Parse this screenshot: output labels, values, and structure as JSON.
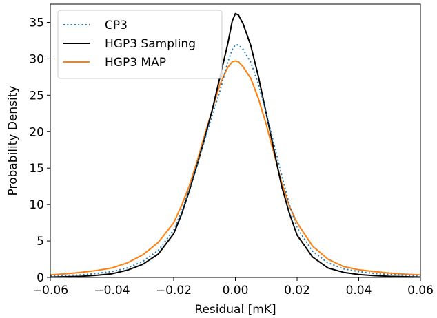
{
  "chart_data": {
    "type": "line",
    "xlabel": "Residual [mK]",
    "ylabel": "Probability Density",
    "xlim": [
      -0.06,
      0.06
    ],
    "ylim": [
      0,
      37.5
    ],
    "grid": false,
    "legend_position": "top-left",
    "x_ticks": [
      "−0.06",
      "−0.04",
      "−0.02",
      "0.00",
      "0.02",
      "0.04",
      "0.06"
    ],
    "y_ticks": [
      "0",
      "5",
      "10",
      "15",
      "20",
      "25",
      "30",
      "35"
    ],
    "series": [
      {
        "name": "CP3",
        "color": "#1f77b4",
        "style": "dotted",
        "points": [
          [
            -0.06,
            0.2
          ],
          [
            -0.05,
            0.35
          ],
          [
            -0.045,
            0.55
          ],
          [
            -0.04,
            0.8
          ],
          [
            -0.035,
            1.3
          ],
          [
            -0.03,
            2.2
          ],
          [
            -0.025,
            3.7
          ],
          [
            -0.02,
            6.5
          ],
          [
            -0.0175,
            9.0
          ],
          [
            -0.015,
            12.0
          ],
          [
            -0.0125,
            15.3
          ],
          [
            -0.01,
            18.8
          ],
          [
            -0.0075,
            22.3
          ],
          [
            -0.005,
            25.6
          ],
          [
            -0.0025,
            29.5
          ],
          [
            -0.001,
            31.3
          ],
          [
            0.0,
            31.9
          ],
          [
            0.001,
            31.9
          ],
          [
            0.0025,
            31.3
          ],
          [
            0.005,
            29.5
          ],
          [
            0.0075,
            26.5
          ],
          [
            0.01,
            22.5
          ],
          [
            0.0125,
            18.3
          ],
          [
            0.015,
            14.0
          ],
          [
            0.0175,
            10.0
          ],
          [
            0.02,
            6.8
          ],
          [
            0.025,
            3.6
          ],
          [
            0.03,
            2.0
          ],
          [
            0.035,
            1.2
          ],
          [
            0.04,
            0.8
          ],
          [
            0.045,
            0.55
          ],
          [
            0.05,
            0.4
          ],
          [
            0.06,
            0.2
          ]
        ]
      },
      {
        "name": "HGP3 Sampling",
        "color": "#000000",
        "style": "solid",
        "points": [
          [
            -0.06,
            0.05
          ],
          [
            -0.05,
            0.15
          ],
          [
            -0.045,
            0.3
          ],
          [
            -0.04,
            0.5
          ],
          [
            -0.035,
            1.0
          ],
          [
            -0.03,
            1.8
          ],
          [
            -0.025,
            3.2
          ],
          [
            -0.02,
            6.0
          ],
          [
            -0.0175,
            8.6
          ],
          [
            -0.015,
            11.8
          ],
          [
            -0.0125,
            15.3
          ],
          [
            -0.01,
            19.0
          ],
          [
            -0.0075,
            23.0
          ],
          [
            -0.005,
            27.5
          ],
          [
            -0.0025,
            32.0
          ],
          [
            -0.001,
            35.2
          ],
          [
            0.0,
            36.2
          ],
          [
            0.001,
            36.0
          ],
          [
            0.0025,
            34.8
          ],
          [
            0.005,
            31.8
          ],
          [
            0.0075,
            27.5
          ],
          [
            0.01,
            22.5
          ],
          [
            0.0125,
            17.5
          ],
          [
            0.015,
            12.5
          ],
          [
            0.0175,
            8.8
          ],
          [
            0.02,
            5.8
          ],
          [
            0.025,
            2.8
          ],
          [
            0.03,
            1.3
          ],
          [
            0.035,
            0.7
          ],
          [
            0.04,
            0.4
          ],
          [
            0.045,
            0.25
          ],
          [
            0.05,
            0.15
          ],
          [
            0.06,
            0.05
          ]
        ]
      },
      {
        "name": "HGP3 MAP",
        "color": "#ff7f0e",
        "style": "solid",
        "points": [
          [
            -0.06,
            0.35
          ],
          [
            -0.055,
            0.5
          ],
          [
            -0.05,
            0.7
          ],
          [
            -0.045,
            0.95
          ],
          [
            -0.04,
            1.3
          ],
          [
            -0.035,
            2.0
          ],
          [
            -0.03,
            3.1
          ],
          [
            -0.025,
            4.8
          ],
          [
            -0.02,
            7.5
          ],
          [
            -0.0175,
            9.8
          ],
          [
            -0.015,
            12.5
          ],
          [
            -0.0125,
            15.8
          ],
          [
            -0.01,
            19.5
          ],
          [
            -0.0075,
            23.0
          ],
          [
            -0.005,
            26.5
          ],
          [
            -0.0025,
            28.8
          ],
          [
            -0.001,
            29.6
          ],
          [
            0.0,
            29.7
          ],
          [
            0.001,
            29.6
          ],
          [
            0.0025,
            28.9
          ],
          [
            0.005,
            27.3
          ],
          [
            0.0075,
            24.5
          ],
          [
            0.01,
            21.0
          ],
          [
            0.0125,
            17.0
          ],
          [
            0.015,
            13.0
          ],
          [
            0.0175,
            9.8
          ],
          [
            0.02,
            7.5
          ],
          [
            0.025,
            4.3
          ],
          [
            0.03,
            2.5
          ],
          [
            0.035,
            1.5
          ],
          [
            0.04,
            1.05
          ],
          [
            0.045,
            0.8
          ],
          [
            0.05,
            0.6
          ],
          [
            0.055,
            0.45
          ],
          [
            0.06,
            0.35
          ]
        ]
      }
    ]
  }
}
